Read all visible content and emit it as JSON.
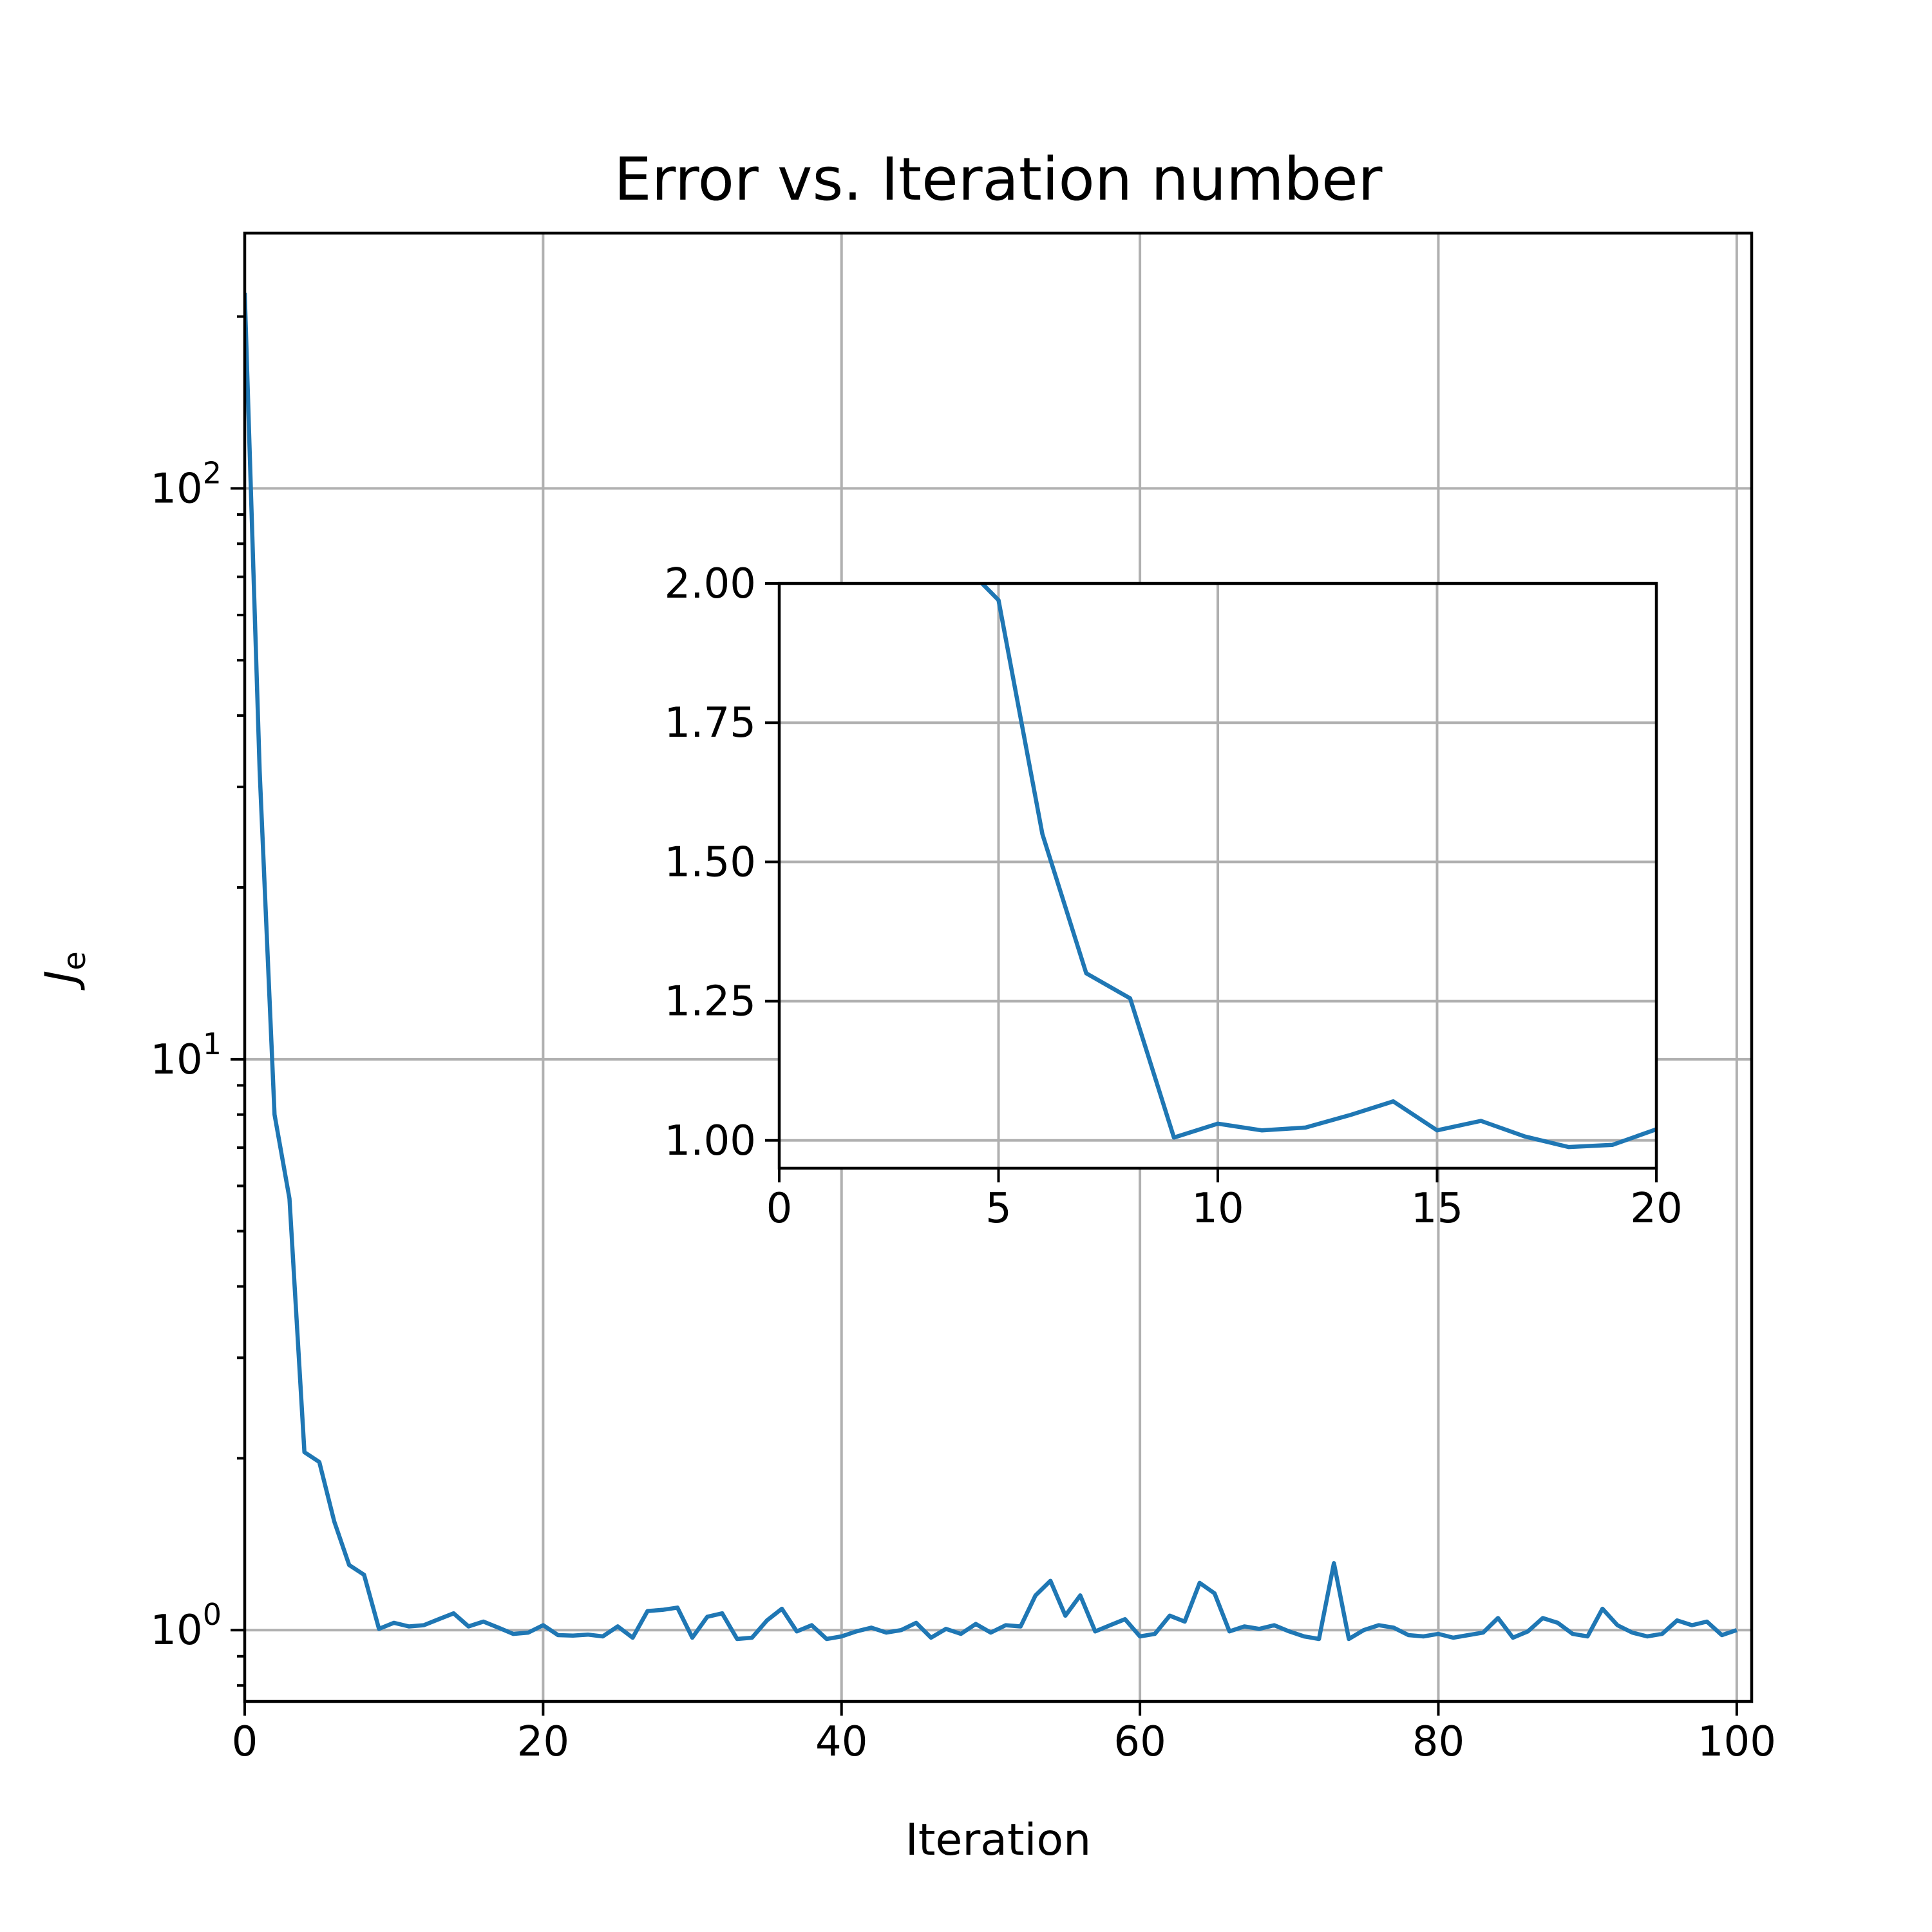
{
  "chart_data": [
    {
      "type": "line",
      "title": "Error vs. Iteration number",
      "xlabel": "Iteration",
      "ylabel": "J",
      "ylabel_subscript": "e",
      "yscale": "log",
      "grid": true,
      "xlim": [
        0,
        101
      ],
      "ylim": [
        0.75,
        280
      ],
      "xticks": [
        0,
        20,
        40,
        60,
        80,
        100
      ],
      "xtick_labels": [
        "0",
        "20",
        "40",
        "60",
        "80",
        "100"
      ],
      "yticks": [
        1,
        10,
        100
      ],
      "ytick_labels": [
        {
          "base": "10",
          "exp": "0"
        },
        {
          "base": "10",
          "exp": "1"
        },
        {
          "base": "10",
          "exp": "2"
        }
      ],
      "color": "#1f77b4",
      "series": [
        {
          "x": [
            0,
            1,
            2,
            3,
            4,
            5,
            6,
            7,
            8,
            9,
            10,
            11,
            12,
            13,
            14,
            15,
            16,
            17,
            18,
            19,
            20,
            21,
            22,
            23,
            24,
            25,
            26,
            27,
            28,
            29,
            30,
            31,
            32,
            33,
            34,
            35,
            36,
            37,
            38,
            39,
            40,
            41,
            42,
            43,
            44,
            45,
            46,
            47,
            48,
            49,
            50,
            51,
            52,
            53,
            54,
            55,
            56,
            57,
            58,
            59,
            60,
            61,
            62,
            63,
            64,
            65,
            66,
            67,
            68,
            69,
            70,
            71,
            72,
            73,
            74,
            75,
            76,
            77,
            78,
            79,
            80,
            81,
            82,
            83,
            84,
            85,
            86,
            87,
            88,
            89,
            90,
            91,
            92,
            93,
            94,
            95,
            96,
            97,
            98,
            99,
            100
          ],
          "y": [
            220,
            32,
            8.0,
            5.7,
            2.05,
            1.97,
            1.55,
            1.3,
            1.25,
            1.005,
            1.03,
            1.015,
            1.02,
            1.045,
            1.07,
            1.015,
            1.035,
            1.01,
            0.985,
            0.99,
            1.02,
            0.98,
            0.978,
            0.982,
            0.975,
            1.015,
            0.97,
            1.08,
            1.085,
            1.095,
            0.97,
            1.055,
            1.07,
            0.965,
            0.97,
            1.04,
            1.09,
            0.995,
            1.02,
            0.965,
            0.975,
            0.995,
            1.01,
            0.99,
            1.0,
            1.03,
            0.97,
            1.005,
            0.985,
            1.025,
            0.99,
            1.02,
            1.015,
            1.15,
            1.22,
            1.06,
            1.15,
            0.995,
            1.02,
            1.045,
            0.975,
            0.985,
            1.06,
            1.035,
            1.21,
            1.16,
            0.995,
            1.015,
            1.005,
            1.02,
            0.995,
            0.975,
            0.965,
            1.31,
            0.965,
            1.0,
            1.02,
            1.01,
            0.98,
            0.975,
            0.985,
            0.97,
            0.98,
            0.99,
            1.05,
            0.97,
            0.995,
            1.05,
            1.03,
            0.985,
            0.975,
            1.09,
            1.02,
            0.99,
            0.975,
            0.985,
            1.04,
            1.02,
            1.035,
            0.98,
            1.0
          ]
        }
      ]
    },
    {
      "type": "line",
      "title": "",
      "xlabel": "",
      "ylabel": "",
      "grid": true,
      "xlim": [
        0,
        20
      ],
      "ylim": [
        0.95,
        2.0
      ],
      "xticks": [
        0,
        5,
        10,
        15,
        20
      ],
      "xtick_labels": [
        "0",
        "5",
        "10",
        "15",
        "20"
      ],
      "yticks": [
        1.0,
        1.25,
        1.5,
        1.75,
        2.0
      ],
      "ytick_labels": [
        "1.00",
        "1.25",
        "1.50",
        "1.75",
        "2.00"
      ],
      "color": "#1f77b4",
      "series": [
        {
          "x": [
            4,
            5,
            6,
            7,
            8,
            9,
            10,
            11,
            12,
            13,
            14,
            15,
            16,
            17,
            18,
            19,
            20
          ],
          "y": [
            2.05,
            1.97,
            1.55,
            1.3,
            1.255,
            1.005,
            1.03,
            1.018,
            1.023,
            1.045,
            1.07,
            1.018,
            1.035,
            1.007,
            0.988,
            0.992,
            1.02
          ]
        }
      ]
    }
  ]
}
